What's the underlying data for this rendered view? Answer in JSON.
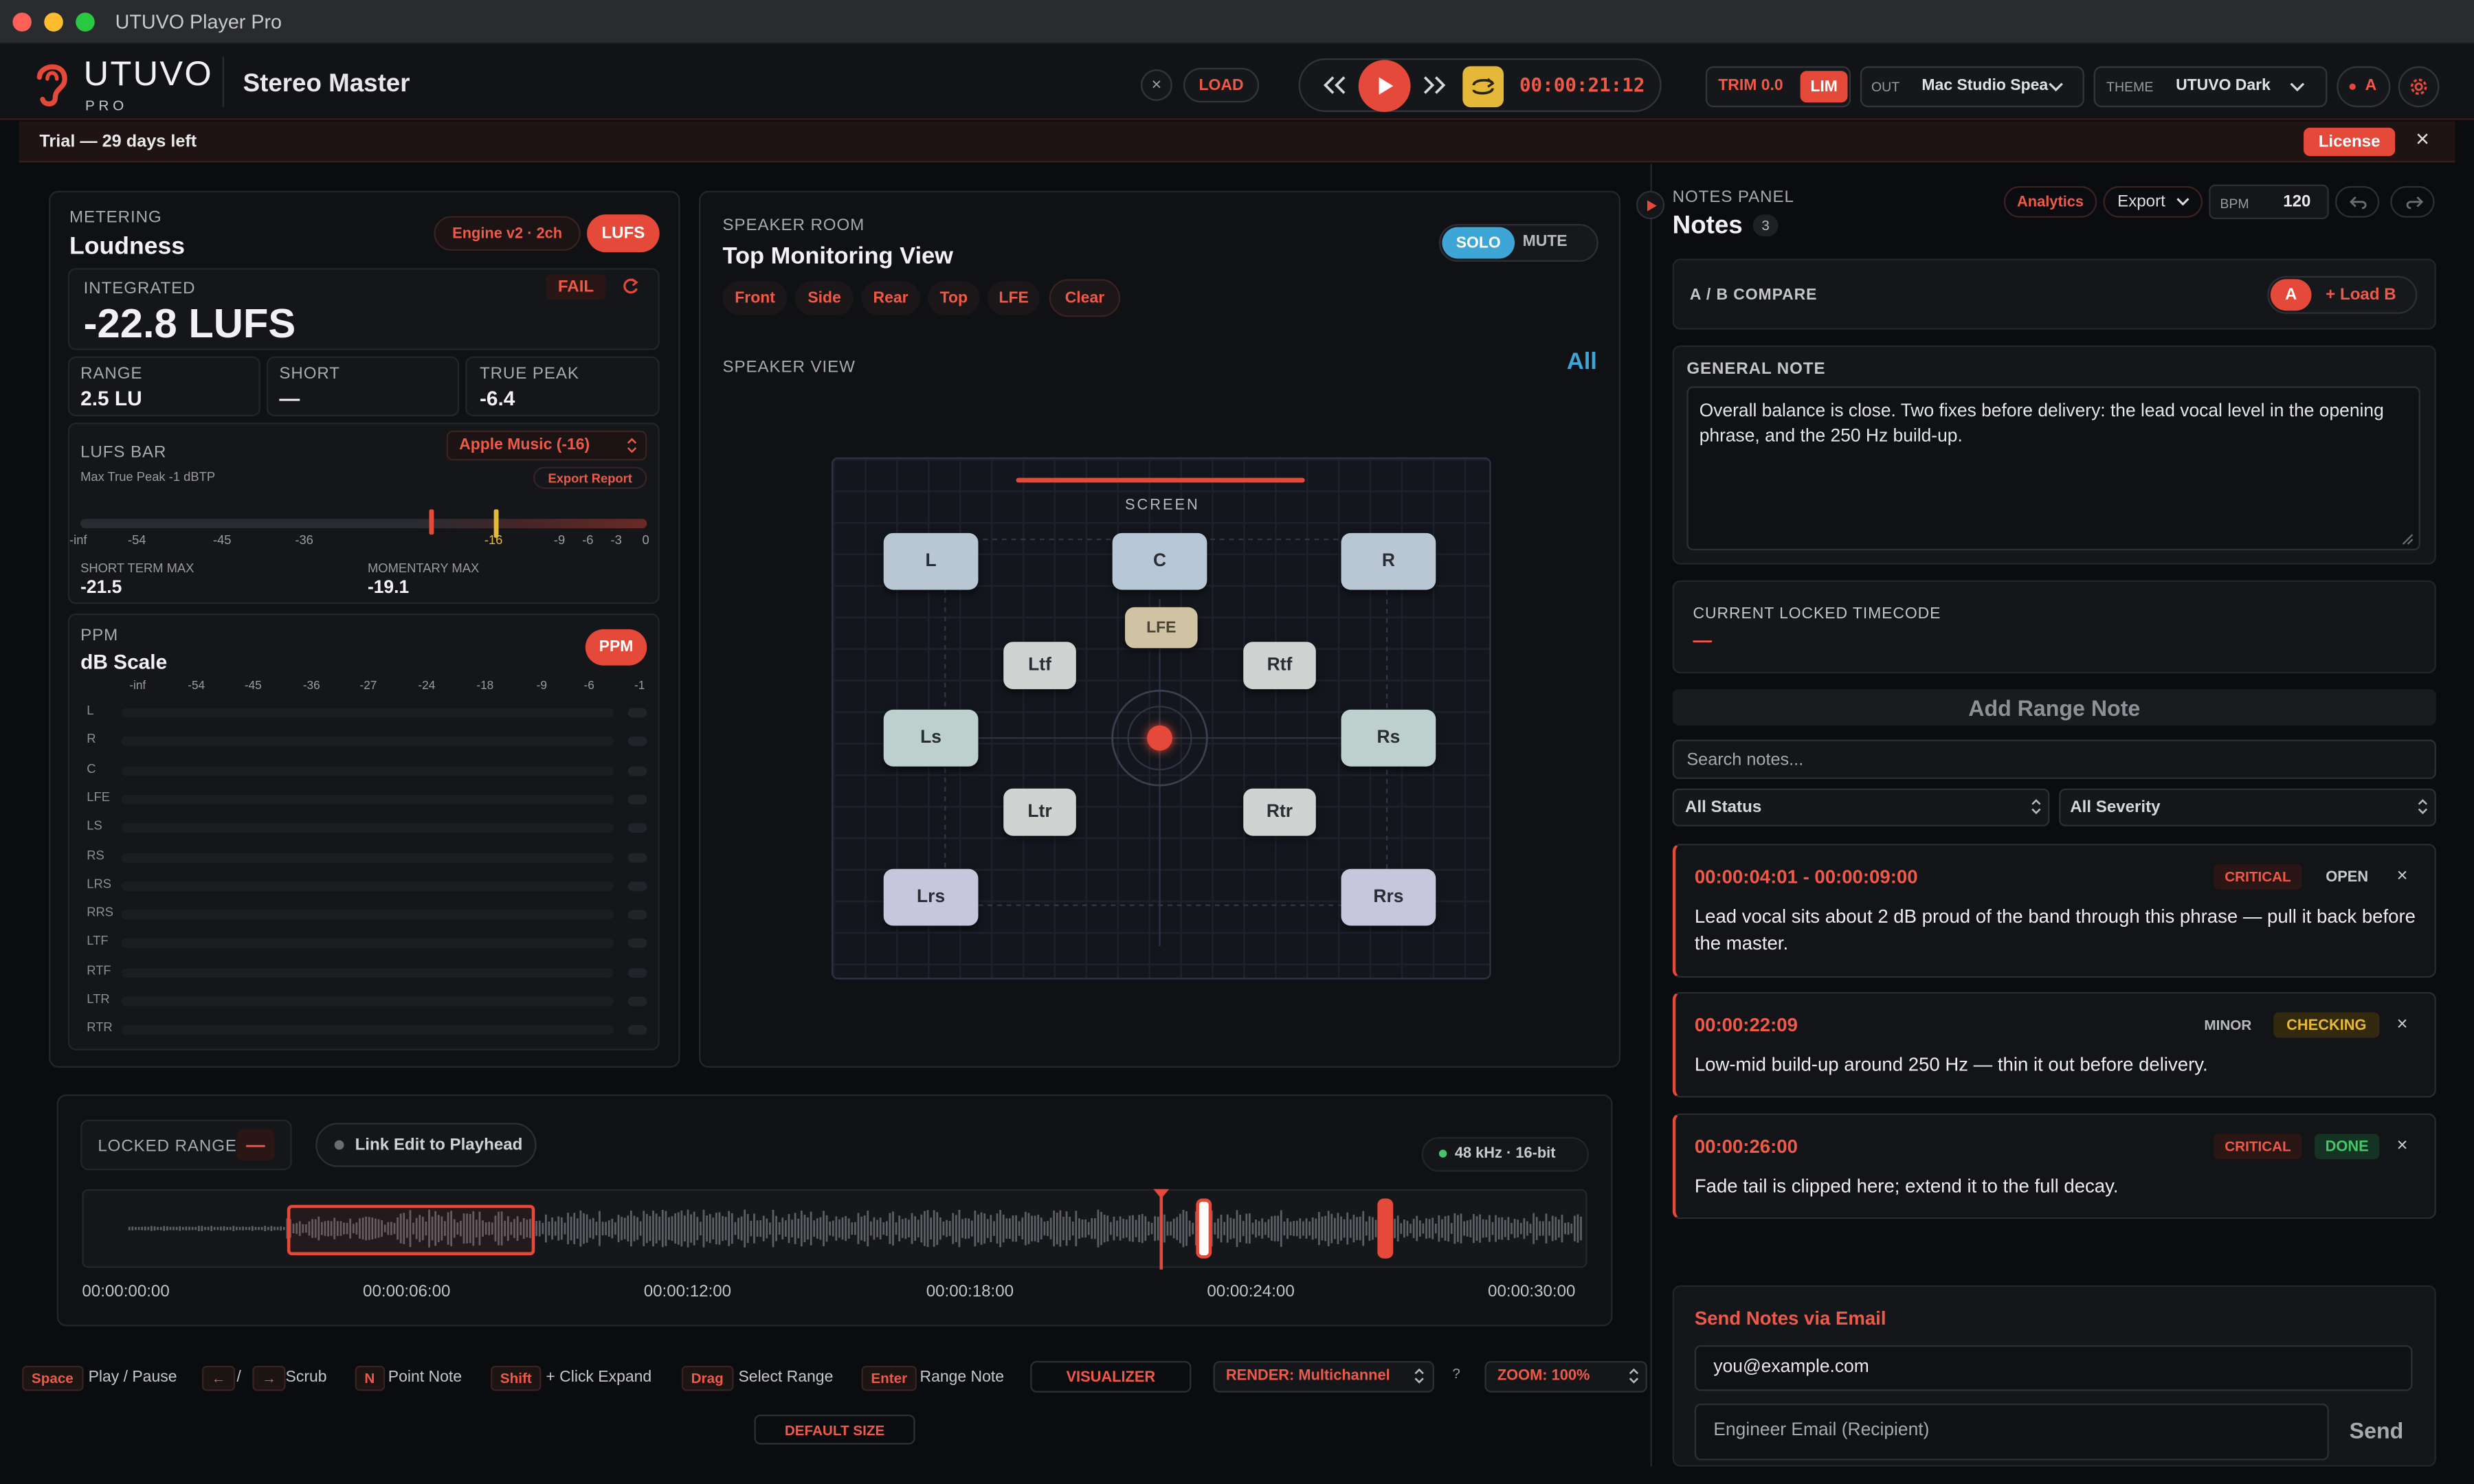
{
  "window": {
    "title": "UTUVO Player Pro"
  },
  "app": {
    "logo": "UTUVO",
    "logo_sub": "PRO",
    "project_title": "Stereo Master",
    "load_label": "LOAD",
    "timecode": "00:00:21:12",
    "trim": "TRIM 0.0",
    "lim": "LIM",
    "out_label": "OUT",
    "out_device": "Mac Studio Spea",
    "theme_label": "THEME",
    "theme_value": "UTUVO Dark",
    "ab_indicator": "A",
    "close_glyph": "×"
  },
  "trial": {
    "text": "Trial — 29 days left",
    "license_label": "License"
  },
  "metering": {
    "section_label": "METERING",
    "title": "Loudness",
    "engine": "Engine v2 · 2ch",
    "lufs_btn": "LUFS",
    "integrated_label": "INTEGRATED",
    "integrated_value": "-22.8 LUFS",
    "fail_badge": "FAIL",
    "range_label": "RANGE",
    "range_value": "2.5 LU",
    "short_label": "SHORT",
    "short_value": "—",
    "truepeak_label": "TRUE PEAK",
    "truepeak_value": "-6.4",
    "lufsbar_label": "LUFS BAR",
    "lufsbar_sub": "Max True Peak -1 dBTP",
    "target_select": "Apple Music (-16)",
    "export_report": "Export Report",
    "scale_ticks": [
      "-inf",
      "-54",
      "-45",
      "-36",
      "-16",
      "-9",
      "-6",
      "-3",
      "0"
    ],
    "short_term_max_label": "SHORT TERM MAX",
    "short_term_max": "-21.5",
    "momentary_max_label": "MOMENTARY MAX",
    "momentary_max": "-19.1",
    "ppm_label": "PPM",
    "ppm_title": "dB Scale",
    "ppm_btn": "PPM",
    "ppm_ticks": [
      "-inf",
      "-54",
      "-45",
      "-36",
      "-27",
      "-24",
      "-18",
      "-9",
      "-6",
      "-1"
    ],
    "ppm_channels": [
      "L",
      "R",
      "C",
      "LFE",
      "LS",
      "RS",
      "LRS",
      "RRS",
      "LTF",
      "RTF",
      "LTR",
      "RTR"
    ]
  },
  "speaker_room": {
    "section_label": "SPEAKER ROOM",
    "title": "Top Monitoring View",
    "solo": "SOLO",
    "mute": "MUTE",
    "filters": [
      "Front",
      "Side",
      "Rear",
      "Top",
      "LFE",
      "Clear"
    ],
    "view_label": "SPEAKER VIEW",
    "all_label": "All",
    "screen_label": "SCREEN",
    "speakers": [
      "L",
      "C",
      "R",
      "LFE",
      "Ltf",
      "Rtf",
      "Ls",
      "Rs",
      "Ltr",
      "Rtr",
      "Lrs",
      "Rrs"
    ]
  },
  "timeline": {
    "locked_range": "LOCKED RANGE",
    "locked_value": "—",
    "link_edit": "Link Edit to Playhead",
    "format": "48 kHz · 16-bit",
    "times": [
      "00:00:00:00",
      "00:00:06:00",
      "00:00:12:00",
      "00:00:18:00",
      "00:00:24:00",
      "00:00:30:00"
    ]
  },
  "shortcuts": {
    "space": "Space",
    "play_pause": "Play / Pause",
    "left": "←",
    "slash": "/",
    "right": "→",
    "scrub": "Scrub",
    "n": "N",
    "point_note": "Point Note",
    "shift": "Shift",
    "click_expand": "+ Click Expand",
    "drag": "Drag",
    "select_range": "Select Range",
    "enter": "Enter",
    "range_note": "Range Note",
    "visualizer": "VISUALIZER",
    "render": "RENDER: Multichannel",
    "help": "?",
    "zoom": "ZOOM: 100%",
    "default_size": "DEFAULT SIZE"
  },
  "notes": {
    "panel_label": "NOTES PANEL",
    "title": "Notes",
    "count": "3",
    "analytics": "Analytics",
    "export": "Export",
    "bpm_label": "BPM",
    "bpm_value": "120",
    "ab_compare": "A / B COMPARE",
    "a_btn": "A",
    "load_b": "+ Load B",
    "general_label": "GENERAL NOTE",
    "general_text": "Overall balance is close. Two fixes before delivery: the lead vocal level in the opening phrase, and the 250 Hz build-up.",
    "locked_tc_label": "CURRENT LOCKED TIMECODE",
    "locked_tc_value": "—",
    "add_range": "Add Range Note",
    "search_placeholder": "Search notes...",
    "status_filter": "All Status",
    "severity_filter": "All Severity",
    "items": [
      {
        "time": "00:00:04:01 - 00:00:09:00",
        "severity": "CRITICAL",
        "status": "OPEN",
        "text": "Lead vocal sits about 2 dB proud of the band through this phrase — pull it back before the master."
      },
      {
        "time": "00:00:22:09",
        "severity": "MINOR",
        "status": "CHECKING",
        "text": "Low-mid build-up around 250 Hz — thin it out before delivery."
      },
      {
        "time": "00:00:26:00",
        "severity": "CRITICAL",
        "status": "DONE",
        "text": "Fade tail is clipped here; extend it to the full decay."
      }
    ],
    "email_title": "Send Notes via Email",
    "email_from": "you@example.com",
    "email_to_placeholder": "Engineer Email (Recipient)",
    "send": "Send"
  },
  "colors": {
    "accent": "#e5493a",
    "solo": "#3ea6d6",
    "yellow": "#e6b83a",
    "done": "#49c46a"
  }
}
